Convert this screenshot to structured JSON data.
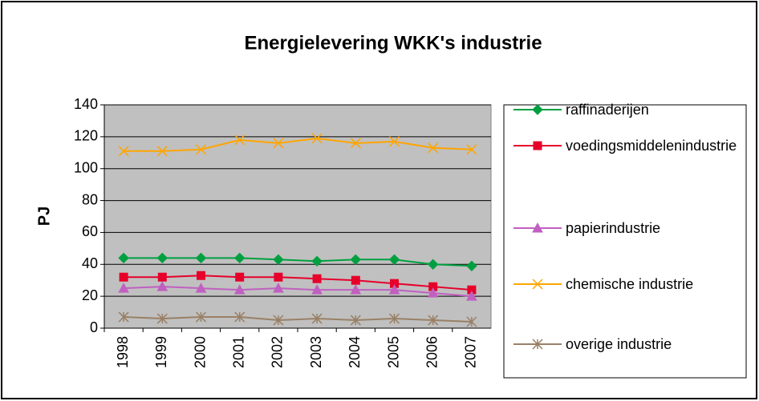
{
  "chart_data": {
    "type": "line",
    "title": "Energielevering WKK's industrie",
    "y_label": "PJ",
    "categories": [
      "1998",
      "1999",
      "2000",
      "2001",
      "2002",
      "2003",
      "2004",
      "2005",
      "2006",
      "2007"
    ],
    "series": [
      {
        "name": "raffinaderijen",
        "color": "#00a040",
        "marker": "diamond",
        "values": [
          44,
          44,
          44,
          44,
          43,
          42,
          43,
          43,
          40,
          39
        ]
      },
      {
        "name": "voedingsmiddelenindustrie",
        "color": "#e6002a",
        "marker": "square",
        "values": [
          32,
          32,
          33,
          32,
          32,
          31,
          30,
          28,
          26,
          24
        ]
      },
      {
        "name": "papierindustrie",
        "color": "#c060c0",
        "marker": "triangle",
        "values": [
          25,
          26,
          25,
          24,
          25,
          24,
          24,
          24,
          22,
          20
        ]
      },
      {
        "name": "chemische industrie",
        "color": "#ffa500",
        "marker": "x",
        "values": [
          111,
          111,
          112,
          118,
          116,
          119,
          116,
          117,
          113,
          112
        ]
      },
      {
        "name": "overige industrie",
        "color": "#998066",
        "marker": "star",
        "values": [
          7,
          6,
          7,
          7,
          5,
          6,
          5,
          6,
          5,
          4
        ]
      }
    ],
    "ylim": [
      0,
      140
    ],
    "yticks": [
      0,
      20,
      40,
      60,
      80,
      100,
      120,
      140
    ],
    "grid": true,
    "legend": "right"
  }
}
